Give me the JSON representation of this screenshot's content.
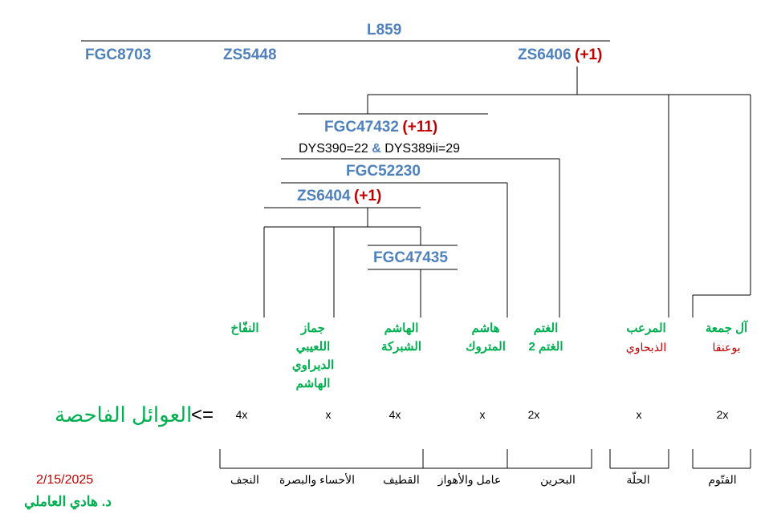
{
  "tree": {
    "root": "L859",
    "branches": [
      "FGC8703",
      "ZS5448",
      "ZS6406"
    ],
    "zs6406_plus": "(+1)",
    "fgc47432": "FGC47432",
    "fgc47432_plus": "(+11)",
    "dys": {
      "left": "DYS390=22",
      "amp": "&",
      "right": "DYS389ii=29"
    },
    "fgc52230": "FGC52230",
    "zs6404": "ZS6404",
    "zs6404_plus": "(+1)",
    "fgc47435": "FGC47435"
  },
  "families": [
    {
      "name": "النفّاخ",
      "sub": "",
      "count": "4x",
      "location": "النجف"
    },
    {
      "name": "جماز\nاللعيبي\nالديراوي\nالهاشم",
      "sub": "",
      "count": "x",
      "location": "الأحساء والبصرة"
    },
    {
      "name": "الهاشم\nالشبركة",
      "sub": "",
      "count": "4x",
      "location": "القطيف"
    },
    {
      "name": "هاشم\nالمتروك",
      "sub": "",
      "count": "x",
      "location": "عامل والأهواز"
    },
    {
      "name": "الغتم\nالغتم 2",
      "sub": "",
      "count": "2x",
      "location": "البحرين"
    },
    {
      "name": "المرعب",
      "sub": "الذبحاوي",
      "count": "x",
      "location": "الحلّة"
    },
    {
      "name": "آل جمعة",
      "sub": "بوعنقا",
      "count": "2x",
      "location": "الفتّوم"
    }
  ],
  "legend": {
    "label": "العوائل الفاحصة",
    "arrow": "<="
  },
  "footer": {
    "date": "2/15/2025",
    "author": "د. هادي العاملي"
  },
  "colors": {
    "snp": "#4f81bd",
    "mutations": "#c00000",
    "families": "#00b050",
    "lines": "#000000"
  }
}
